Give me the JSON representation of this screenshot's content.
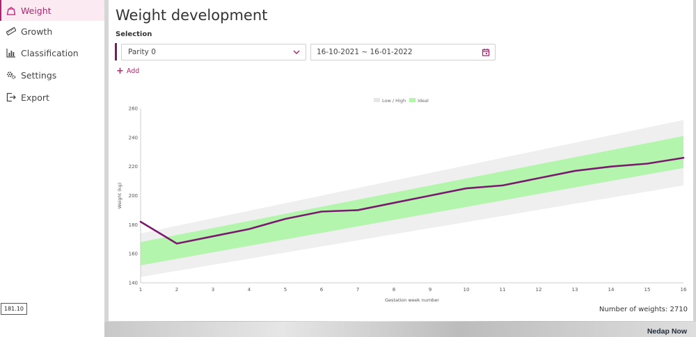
{
  "sidebar": {
    "items": [
      {
        "label": "Weight",
        "icon": "weight-icon",
        "active": true
      },
      {
        "label": "Growth",
        "icon": "ruler-icon",
        "active": false
      },
      {
        "label": "Classification",
        "icon": "bar-chart-icon",
        "active": false
      },
      {
        "label": "Settings",
        "icon": "gears-icon",
        "active": false
      },
      {
        "label": "Export",
        "icon": "export-icon",
        "active": false
      }
    ],
    "version": "181.10"
  },
  "page": {
    "title": "Weight development",
    "selection_label": "Selection",
    "parity_value": "Parity 0",
    "date_range": "16-10-2021 ~ 16-01-2022",
    "add_label": "Add",
    "count_text": "Number of weights: 2710"
  },
  "footer": {
    "brand": "Nedap Now"
  },
  "colors": {
    "accent": "#c2187a",
    "line": "#7a1a6e",
    "ideal": "#b3f5ac",
    "lowhigh": "#efefef"
  },
  "chart_data": {
    "type": "line",
    "title": "",
    "xlabel": "Gestation week number",
    "ylabel": "Weight (kg)",
    "x": [
      1,
      2,
      3,
      4,
      5,
      6,
      7,
      8,
      9,
      10,
      11,
      12,
      13,
      14,
      15,
      16
    ],
    "xlim": [
      1,
      16
    ],
    "ylim": [
      140,
      260
    ],
    "yticks": [
      140,
      160,
      180,
      200,
      220,
      240,
      260
    ],
    "legend": [
      {
        "name": "Low / High"
      },
      {
        "name": "Ideal"
      }
    ],
    "legend_position": "top-center",
    "bands": {
      "low_high": {
        "x": [
          1,
          16
        ],
        "lower": [
          144,
          207
        ],
        "upper": [
          174,
          252
        ]
      },
      "ideal": {
        "x": [
          1,
          16
        ],
        "lower": [
          152,
          219
        ],
        "upper": [
          168,
          241
        ]
      }
    },
    "series": [
      {
        "values": [
          182,
          167,
          172,
          177,
          184,
          189,
          190,
          195,
          200,
          205,
          207,
          212,
          217,
          220,
          222,
          226
        ]
      }
    ]
  }
}
